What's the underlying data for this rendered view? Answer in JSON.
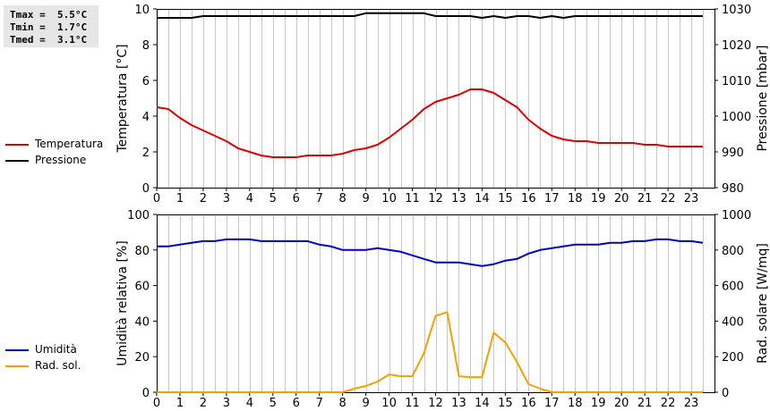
{
  "stats": {
    "tmax": "Tmax =  5.5°C",
    "tmin": "Tmin =  1.7°C",
    "tmed": "Tmed =  3.1°C"
  },
  "colors": {
    "temperature": "#e00000",
    "pressure": "#000000",
    "humidity": "#0000c8",
    "radiation": "#f5a000",
    "grid": "#c8c8c8",
    "stats_bg": "#e6e6e6"
  },
  "legend_top": [
    {
      "label": "Temperatura",
      "color": "#e00000"
    },
    {
      "label": "Pressione",
      "color": "#000000"
    }
  ],
  "legend_bottom": [
    {
      "label": "Umidità",
      "color": "#0000c8"
    },
    {
      "label": "Rad. sol.",
      "color": "#f5a000"
    }
  ],
  "chart_data": [
    {
      "type": "line",
      "ylabel": "Temperatura [°C]",
      "y2label": "Pressione [mbar]",
      "xlim": [
        0,
        24
      ],
      "ylim": [
        0,
        10
      ],
      "y2lim": [
        980,
        1030
      ],
      "x_ticks": [
        "0",
        "1",
        "2",
        "3",
        "4",
        "5",
        "6",
        "7",
        "8",
        "9",
        "10",
        "11",
        "12",
        "13",
        "14",
        "15",
        "16",
        "17",
        "18",
        "19",
        "20",
        "21",
        "22",
        "23"
      ],
      "y_ticks": [
        "0",
        "2",
        "4",
        "6",
        "8",
        "10"
      ],
      "y2_ticks": [
        "980",
        "990",
        "1000",
        "1010",
        "1020",
        "1030"
      ],
      "grid": true,
      "series": [
        {
          "name": "Temperatura",
          "axis": "left",
          "x": [
            0,
            0.5,
            1,
            1.5,
            2,
            2.5,
            3,
            3.5,
            4,
            4.5,
            5,
            5.5,
            6,
            6.5,
            7,
            7.5,
            8,
            8.5,
            9,
            9.5,
            10,
            10.5,
            11,
            11.5,
            12,
            12.5,
            13,
            13.5,
            14,
            14.5,
            15,
            15.5,
            16,
            16.5,
            17,
            17.5,
            18,
            18.5,
            19,
            19.5,
            20,
            20.5,
            21,
            21.5,
            22,
            22.5,
            23,
            23.5
          ],
          "values": [
            4.5,
            4.4,
            3.9,
            3.5,
            3.2,
            2.9,
            2.6,
            2.2,
            2.0,
            1.8,
            1.7,
            1.7,
            1.7,
            1.8,
            1.8,
            1.8,
            1.9,
            2.1,
            2.2,
            2.4,
            2.8,
            3.3,
            3.8,
            4.4,
            4.8,
            5.0,
            5.2,
            5.5,
            5.5,
            5.3,
            4.9,
            4.5,
            3.8,
            3.3,
            2.9,
            2.7,
            2.6,
            2.6,
            2.5,
            2.5,
            2.5,
            2.5,
            2.4,
            2.4,
            2.3,
            2.3,
            2.3,
            2.3
          ]
        },
        {
          "name": "Pressione",
          "axis": "right",
          "x": [
            0,
            0.5,
            1,
            1.5,
            2,
            2.5,
            3,
            3.5,
            4,
            4.5,
            5,
            5.5,
            6,
            6.5,
            7,
            7.5,
            8,
            8.5,
            9,
            9.5,
            10,
            10.5,
            11,
            11.5,
            12,
            12.5,
            13,
            13.5,
            14,
            14.5,
            15,
            15.5,
            16,
            16.5,
            17,
            17.5,
            18,
            18.5,
            19,
            19.5,
            20,
            20.5,
            21,
            21.5,
            22,
            22.5,
            23,
            23.5
          ],
          "values": [
            1027.5,
            1027.5,
            1027.5,
            1027.5,
            1028,
            1028,
            1028,
            1028,
            1028,
            1028,
            1028,
            1028,
            1028,
            1028,
            1028,
            1028,
            1028,
            1028,
            1028.8,
            1028.8,
            1028.8,
            1028.8,
            1028.8,
            1028.8,
            1028,
            1028,
            1028,
            1028,
            1027.5,
            1028,
            1027.5,
            1028,
            1028,
            1027.5,
            1028,
            1027.5,
            1028,
            1028,
            1028,
            1028,
            1028,
            1028,
            1028,
            1028,
            1028,
            1028,
            1028,
            1028
          ]
        }
      ]
    },
    {
      "type": "line",
      "ylabel": "Umidità relativa [%]",
      "y2label": "Rad. solare [W/mq]",
      "xlim": [
        0,
        24
      ],
      "ylim": [
        0,
        100
      ],
      "y2lim": [
        0,
        1000
      ],
      "x_ticks": [
        "0",
        "1",
        "2",
        "3",
        "4",
        "5",
        "6",
        "7",
        "8",
        "9",
        "10",
        "11",
        "12",
        "13",
        "14",
        "15",
        "16",
        "17",
        "18",
        "19",
        "20",
        "21",
        "22",
        "23"
      ],
      "y_ticks": [
        "0",
        "20",
        "40",
        "60",
        "80",
        "100"
      ],
      "y2_ticks": [
        "0",
        "200",
        "400",
        "600",
        "800",
        "1000"
      ],
      "grid": true,
      "series": [
        {
          "name": "Umidità",
          "axis": "left",
          "x": [
            0,
            0.5,
            1,
            1.5,
            2,
            2.5,
            3,
            3.5,
            4,
            4.5,
            5,
            5.5,
            6,
            6.5,
            7,
            7.5,
            8,
            8.5,
            9,
            9.5,
            10,
            10.5,
            11,
            11.5,
            12,
            12.5,
            13,
            13.5,
            14,
            14.5,
            15,
            15.5,
            16,
            16.5,
            17,
            17.5,
            18,
            18.5,
            19,
            19.5,
            20,
            20.5,
            21,
            21.5,
            22,
            22.5,
            23,
            23.5
          ],
          "values": [
            82,
            82,
            83,
            84,
            85,
            85,
            86,
            86,
            86,
            85,
            85,
            85,
            85,
            85,
            83,
            82,
            80,
            80,
            80,
            81,
            80,
            79,
            77,
            75,
            73,
            73,
            73,
            72,
            71,
            72,
            74,
            75,
            78,
            80,
            81,
            82,
            83,
            83,
            83,
            84,
            84,
            85,
            85,
            86,
            86,
            85,
            85,
            84
          ]
        },
        {
          "name": "Rad. sol.",
          "axis": "right",
          "x": [
            0,
            0.5,
            1,
            1.5,
            2,
            2.5,
            3,
            3.5,
            4,
            4.5,
            5,
            5.5,
            6,
            6.5,
            7,
            7.5,
            8,
            8.5,
            9,
            9.5,
            10,
            10.5,
            11,
            11.5,
            12,
            12.5,
            13,
            13.5,
            14,
            14.5,
            15,
            15.5,
            16,
            16.5,
            17,
            17.5,
            18,
            18.5,
            19,
            19.5,
            20,
            20.5,
            21,
            21.5,
            22,
            22.5,
            23,
            23.5
          ],
          "values": [
            0,
            0,
            0,
            0,
            0,
            0,
            0,
            0,
            0,
            0,
            0,
            0,
            0,
            0,
            0,
            0,
            0,
            20,
            35,
            60,
            100,
            90,
            90,
            220,
            430,
            450,
            90,
            85,
            85,
            335,
            280,
            170,
            45,
            20,
            0,
            0,
            0,
            0,
            0,
            0,
            0,
            0,
            0,
            0,
            0,
            0,
            0,
            0
          ]
        }
      ]
    }
  ]
}
